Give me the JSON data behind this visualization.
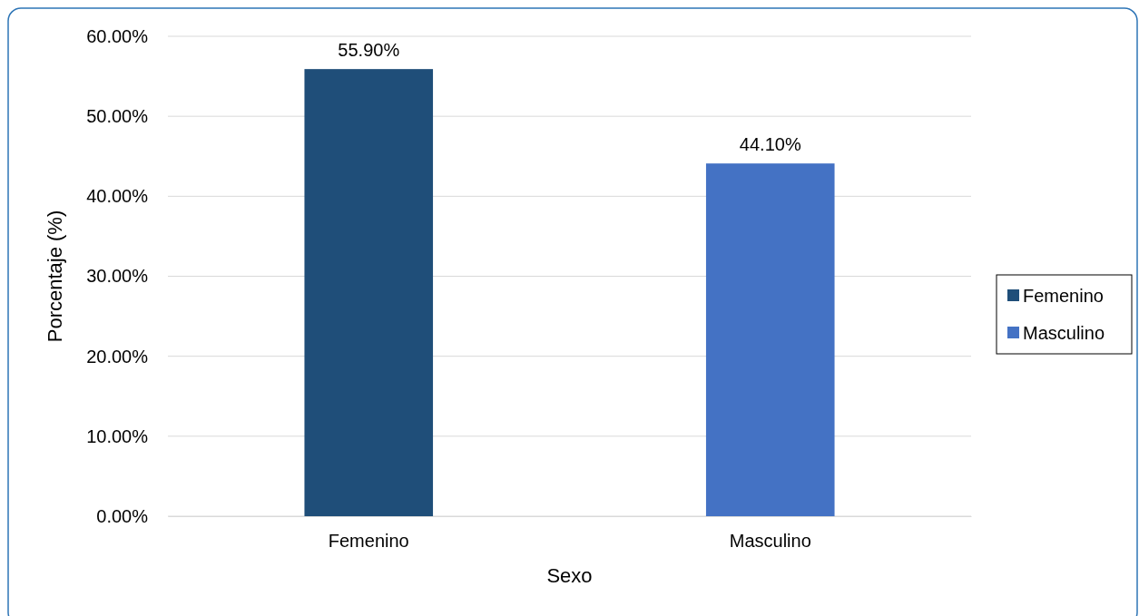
{
  "chart_data": {
    "type": "bar",
    "xlabel": "Sexo",
    "ylabel": "Porcentaje (%)",
    "categories": [
      "Femenino",
      "Masculino"
    ],
    "series": [
      {
        "name": "Femenino",
        "color": "#1f4e79",
        "values": [
          55.9,
          null
        ],
        "value_labels": [
          "55.90%",
          null
        ]
      },
      {
        "name": "Masculino",
        "color": "#4472c4",
        "values": [
          null,
          44.1
        ],
        "value_labels": [
          null,
          "44.10%"
        ]
      }
    ],
    "ylim": [
      0,
      60
    ],
    "yticks": [
      {
        "value": 0,
        "label": "0.00%"
      },
      {
        "value": 10,
        "label": "10.00%"
      },
      {
        "value": 20,
        "label": "20.00%"
      },
      {
        "value": 30,
        "label": "30.00%"
      },
      {
        "value": 40,
        "label": "40.00%"
      },
      {
        "value": 50,
        "label": "50.00%"
      },
      {
        "value": 60,
        "label": "60.00%"
      }
    ],
    "grid": "y",
    "legend": "right"
  }
}
